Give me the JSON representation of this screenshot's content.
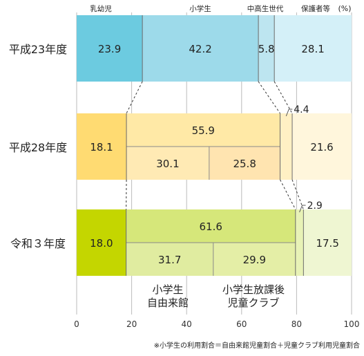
{
  "chart_data": {
    "type": "bar",
    "orientation": "horizontal",
    "stacked": true,
    "xlim": [
      0,
      100
    ],
    "xticks": [
      0,
      20,
      40,
      60,
      80,
      100
    ],
    "unit_label": "(%)",
    "category_labels": [
      "乳幼児",
      "小学生",
      "中高生世代",
      "保護者等"
    ],
    "rows": [
      {
        "label": "平成23年度",
        "segments": [
          {
            "category": "乳幼児",
            "value": 23.9,
            "label": "23.9",
            "color": "#6ccbe0"
          },
          {
            "category": "小学生",
            "value": 42.2,
            "label": "42.2",
            "color": "#9ddaea"
          },
          {
            "category": "中高生世代",
            "value": 5.8,
            "label": "5.8",
            "color": "#bde5f0"
          },
          {
            "category": "保護者等",
            "value": 28.1,
            "label": "28.1",
            "color": "#d4f0f8"
          }
        ]
      },
      {
        "label": "平成28年度",
        "segments": [
          {
            "category": "乳幼児",
            "value": 18.1,
            "label": "18.1",
            "color": "#ffdb72"
          },
          {
            "category": "小学生",
            "value": 55.9,
            "label": "55.9",
            "color": "#ffe9a6",
            "sub": [
              {
                "name": "自由来館",
                "value": 30.1,
                "label": "30.1",
                "color": "#ffeab4"
              },
              {
                "name": "児童クラブ",
                "value": 25.8,
                "label": "25.8",
                "color": "#ffe4b0"
              }
            ]
          },
          {
            "category": "中高生世代",
            "value": 4.4,
            "label": "4.4",
            "color": "#fff0c4"
          },
          {
            "category": "保護者等",
            "value": 21.6,
            "label": "21.6",
            "color": "#fff6dc"
          }
        ]
      },
      {
        "label": "令和３年度",
        "segments": [
          {
            "category": "乳幼児",
            "value": 18.0,
            "label": "18.0",
            "color": "#c4d600"
          },
          {
            "category": "小学生",
            "value": 61.6,
            "label": "61.6",
            "color": "#d6e77a",
            "sub": [
              {
                "name": "自由来館",
                "value": 31.7,
                "label": "31.7",
                "color": "#e0eca0"
              },
              {
                "name": "児童クラブ",
                "value": 29.9,
                "label": "29.9",
                "color": "#e4eea6"
              }
            ]
          },
          {
            "category": "中高生世代",
            "value": 2.9,
            "label": "2.9",
            "color": "#e8f2b6"
          },
          {
            "category": "保護者等",
            "value": 17.5,
            "label": "17.5",
            "color": "#eff6d2"
          }
        ]
      }
    ],
    "sub_labels": [
      [
        "小学生",
        "自由来館"
      ],
      [
        "小学生放課後",
        "児童クラブ"
      ]
    ],
    "footnote": "※小学生の利用割合＝自由来館児童割合＋児童クラブ利用児童割合"
  }
}
